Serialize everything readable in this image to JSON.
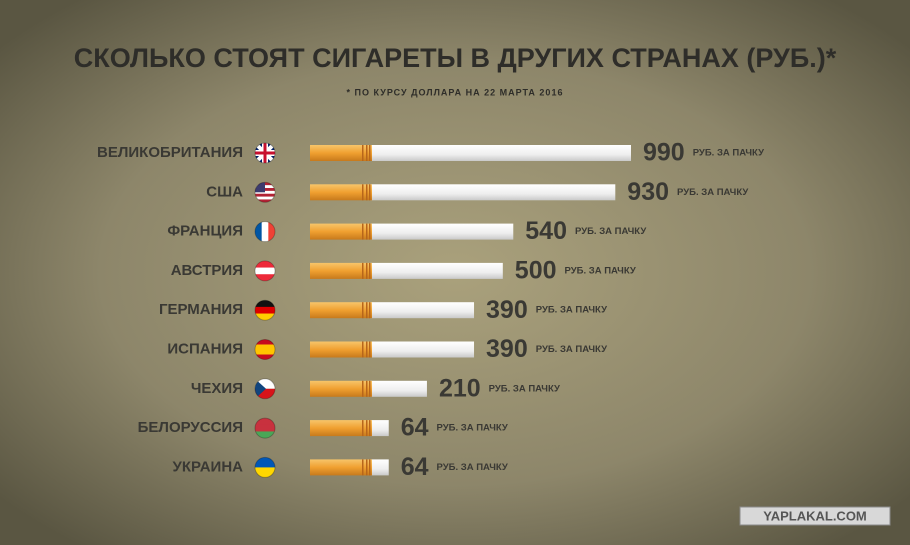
{
  "chart_data": {
    "type": "bar",
    "title": "СКОЛЬКО СТОЯТ СИГАРЕТЫ В ДРУГИХ СТРАНАХ (РУБ.)*",
    "subtitle": "* ПО КУРСУ ДОЛЛАРА НА 22 МАРТА 2016",
    "categories": [
      "ВЕЛИКОБРИТАНИЯ",
      "США",
      "ФРАНЦИЯ",
      "АВСТРИЯ",
      "ГЕРМАНИЯ",
      "ИСПАНИЯ",
      "ЧЕХИЯ",
      "БЕЛОРУССИЯ",
      "УКРАИНА"
    ],
    "values": [
      990,
      930,
      540,
      500,
      390,
      390,
      210,
      64,
      64
    ],
    "unit_label": "РУБ. ЗА ПАЧКУ",
    "watermark": "YAPLAKAL.COM"
  }
}
